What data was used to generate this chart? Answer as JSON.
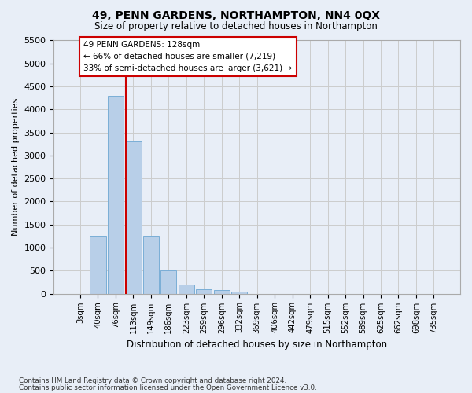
{
  "title": "49, PENN GARDENS, NORTHAMPTON, NN4 0QX",
  "subtitle": "Size of property relative to detached houses in Northampton",
  "xlabel": "Distribution of detached houses by size in Northampton",
  "ylabel": "Number of detached properties",
  "footer_line1": "Contains HM Land Registry data © Crown copyright and database right 2024.",
  "footer_line2": "Contains public sector information licensed under the Open Government Licence v3.0.",
  "bin_labels": [
    "3sqm",
    "40sqm",
    "76sqm",
    "113sqm",
    "149sqm",
    "186sqm",
    "223sqm",
    "259sqm",
    "296sqm",
    "332sqm",
    "369sqm",
    "406sqm",
    "442sqm",
    "479sqm",
    "515sqm",
    "552sqm",
    "589sqm",
    "625sqm",
    "662sqm",
    "698sqm",
    "735sqm"
  ],
  "bar_values": [
    0,
    1250,
    4300,
    3300,
    1250,
    500,
    200,
    100,
    75,
    50,
    0,
    0,
    0,
    0,
    0,
    0,
    0,
    0,
    0,
    0,
    0
  ],
  "bar_color": "#b8cfe8",
  "bar_edge_color": "#7aaed6",
  "vline_x": 2.6,
  "vline_color": "#cc0000",
  "annotation_text": "49 PENN GARDENS: 128sqm\n← 66% of detached houses are smaller (7,219)\n33% of semi-detached houses are larger (3,621) →",
  "annotation_box_color": "#ffffff",
  "annotation_border_color": "#cc0000",
  "ylim": [
    0,
    5500
  ],
  "yticks": [
    0,
    500,
    1000,
    1500,
    2000,
    2500,
    3000,
    3500,
    4000,
    4500,
    5000,
    5500
  ],
  "grid_color": "#cccccc",
  "background_color": "#e8eef7",
  "axes_background": "#e8eef7"
}
